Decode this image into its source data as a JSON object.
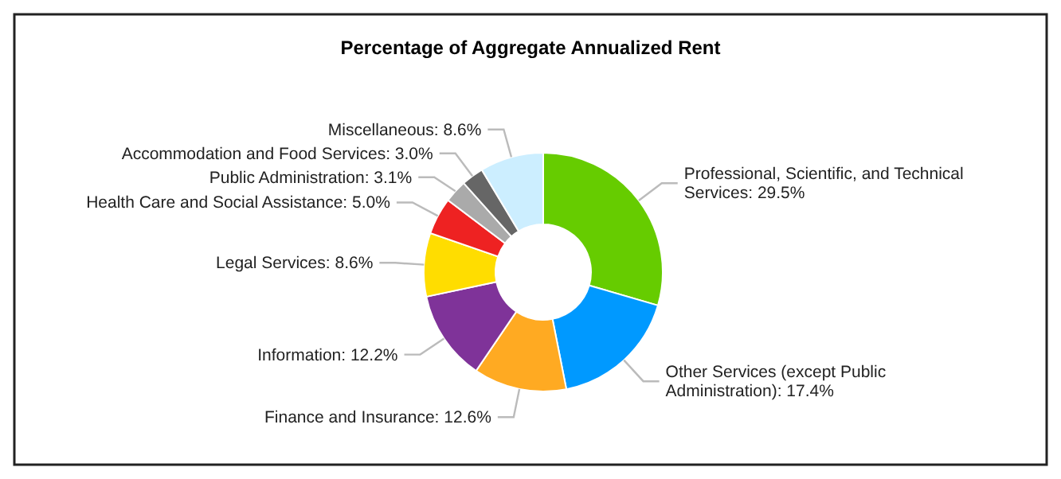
{
  "chart_data": {
    "type": "donut",
    "title": "Percentage of Aggregate Annualized Rent",
    "categories": [
      "Professional, Scientific, and Technical Services",
      "Other Services (except Public Administration)",
      "Finance and Insurance",
      "Information",
      "Legal Services",
      "Health Care and Social Assistance",
      "Public Administration",
      "Accommodation and Food Services",
      "Miscellaneous"
    ],
    "values": [
      29.5,
      17.4,
      12.6,
      12.2,
      8.6,
      5.0,
      3.1,
      3.0,
      8.6
    ],
    "value_labels": [
      "29.5%",
      "17.4%",
      "12.6%",
      "12.2%",
      "8.6%",
      "5.0%",
      "3.1%",
      "3.0%",
      "8.6%"
    ],
    "colors": [
      "#66cc00",
      "#0099ff",
      "#ffaa22",
      "#7f3399",
      "#ffdd00",
      "#ee2222",
      "#aaaaaa",
      "#666666",
      "#cceeff"
    ],
    "legend": false
  }
}
